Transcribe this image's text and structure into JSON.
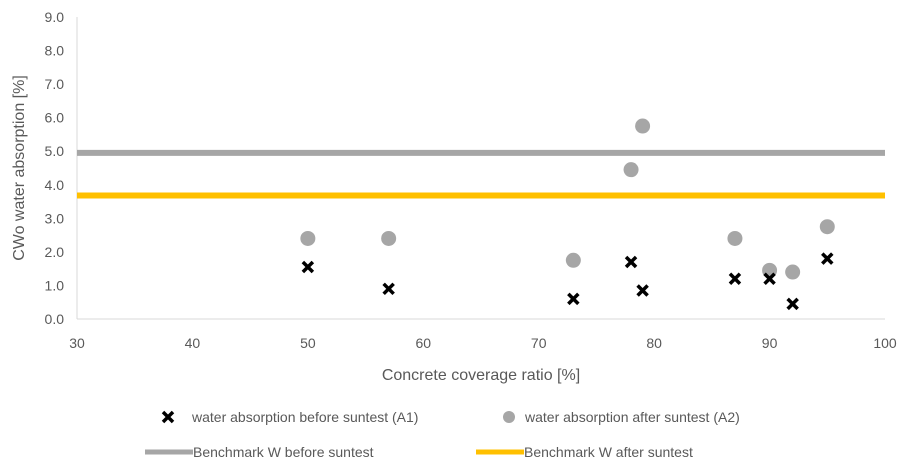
{
  "chart_data": {
    "type": "scatter",
    "xlabel": "Concrete coverage ratio [%]",
    "ylabel": "CWo water absorption [%]",
    "xlim": [
      30,
      100
    ],
    "ylim": [
      0,
      9
    ],
    "xticks": [
      "30",
      "40",
      "50",
      "60",
      "70",
      "80",
      "90",
      "100"
    ],
    "yticks": [
      "0.0",
      "1.0",
      "2.0",
      "3.0",
      "4.0",
      "5.0",
      "6.0",
      "7.0",
      "8.0",
      "9.0"
    ],
    "grid": false,
    "legend_position": "bottom",
    "series": [
      {
        "name": "water absorption before suntest (A1)",
        "marker": "x",
        "color": "#000000",
        "points": [
          {
            "x": 50,
            "y": 1.55
          },
          {
            "x": 57,
            "y": 0.9
          },
          {
            "x": 73,
            "y": 0.6
          },
          {
            "x": 78,
            "y": 1.7
          },
          {
            "x": 79,
            "y": 0.85
          },
          {
            "x": 87,
            "y": 1.2
          },
          {
            "x": 90,
            "y": 1.2
          },
          {
            "x": 92,
            "y": 0.45
          },
          {
            "x": 95,
            "y": 1.8
          }
        ]
      },
      {
        "name": "water absorption after suntest (A2)",
        "marker": "circle",
        "color": "#a6a6a6",
        "points": [
          {
            "x": 50,
            "y": 2.4
          },
          {
            "x": 57,
            "y": 2.4
          },
          {
            "x": 73,
            "y": 1.75
          },
          {
            "x": 78,
            "y": 4.45
          },
          {
            "x": 79,
            "y": 5.75
          },
          {
            "x": 87,
            "y": 2.4
          },
          {
            "x": 90,
            "y": 1.45
          },
          {
            "x": 92,
            "y": 1.4
          },
          {
            "x": 95,
            "y": 2.75
          }
        ]
      }
    ],
    "reference_lines": [
      {
        "name": "Benchmark W before suntest",
        "y": 4.95,
        "color": "#a6a6a6"
      },
      {
        "name": "Benchmark W after suntest",
        "y": 3.68,
        "color": "#ffc000"
      }
    ]
  }
}
